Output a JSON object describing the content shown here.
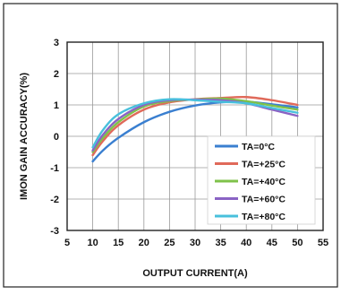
{
  "chart_data": {
    "type": "line",
    "xlabel": "OUTPUT CURRENT(A)",
    "ylabel": "IMON GAIN ACCURACY(%)",
    "xlim": [
      5,
      55
    ],
    "ylim": [
      -3,
      3
    ],
    "x_ticks": [
      "5",
      "10",
      "15",
      "20",
      "25",
      "30",
      "35",
      "40",
      "45",
      "50",
      "55"
    ],
    "y_ticks": [
      "3",
      "2",
      "1",
      "0",
      "-1",
      "-2",
      "-3"
    ],
    "grid": true,
    "legend_position": "bottom-right",
    "series": [
      {
        "name": "TA=0°C",
        "color": "#3a7fd0",
        "x": [
          10,
          12,
          15,
          20,
          25,
          30,
          35,
          40,
          45,
          50
        ],
        "y": [
          -0.8,
          -0.45,
          -0.05,
          0.45,
          0.78,
          0.98,
          1.08,
          1.1,
          1.02,
          0.92
        ]
      },
      {
        "name": "TA=+25°C",
        "color": "#e06a5a",
        "x": [
          10,
          12,
          15,
          20,
          25,
          30,
          35,
          40,
          45,
          50
        ],
        "y": [
          -0.6,
          -0.15,
          0.35,
          0.85,
          1.08,
          1.18,
          1.22,
          1.25,
          1.15,
          1.0
        ]
      },
      {
        "name": "TA=+40°C",
        "color": "#7fc24a",
        "x": [
          10,
          12,
          15,
          20,
          25,
          30,
          35,
          40,
          45,
          50
        ],
        "y": [
          -0.5,
          -0.05,
          0.45,
          0.95,
          1.12,
          1.17,
          1.2,
          1.12,
          0.98,
          0.85
        ]
      },
      {
        "name": "TA=+60°C",
        "color": "#8a63c4",
        "x": [
          10,
          12,
          15,
          20,
          25,
          30,
          35,
          40,
          45,
          50
        ],
        "y": [
          -0.45,
          0.05,
          0.55,
          1.0,
          1.15,
          1.17,
          1.15,
          1.05,
          0.85,
          0.65
        ]
      },
      {
        "name": "TA=+80°C",
        "color": "#48c0dc",
        "x": [
          10,
          12,
          15,
          20,
          25,
          30,
          35,
          40,
          45,
          50
        ],
        "y": [
          -0.35,
          0.2,
          0.7,
          1.05,
          1.18,
          1.15,
          1.1,
          1.05,
          0.9,
          0.75
        ]
      }
    ]
  }
}
